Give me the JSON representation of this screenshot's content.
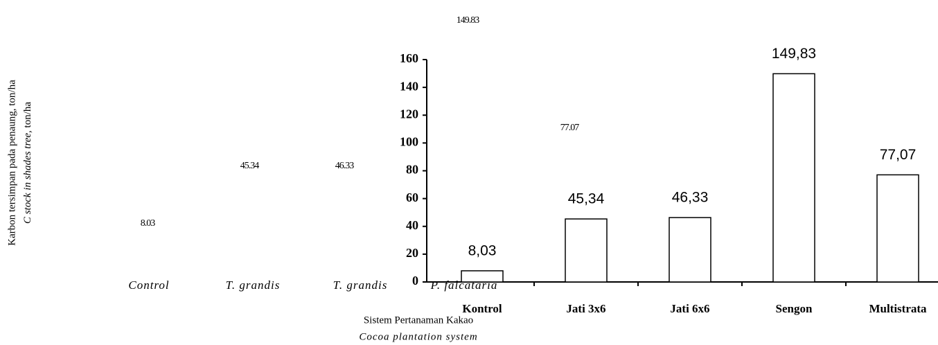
{
  "chart_data": {
    "type": "bar",
    "ylabel": "Karbon tersimpan pada penaung, ton/ha",
    "ylabel_en": "C stock in shades tree,",
    "ylabel_en_unit": "ton/ha",
    "xlabel": "Sistem Pertanaman Kakao",
    "xlabel_en": "Cocoa plantation system",
    "categories": [
      "Kontrol",
      "Jati 3x6",
      "Jati 6x6",
      "Sengon",
      "Multistrata"
    ],
    "categories_en": [
      "Control",
      "T. grandis",
      "T. grandis",
      "P. falcataria"
    ],
    "values": [
      8.03,
      45.34,
      46.33,
      149.83,
      77.07
    ],
    "value_labels": [
      "8,03",
      "45,34",
      "46,33",
      "149,83",
      "77,07"
    ],
    "overlay_labels": [
      "8.03",
      "45.34",
      "46.33",
      "149.83",
      "77.07"
    ],
    "color": "#ffffff",
    "ylim": [
      0,
      160
    ],
    "yticks": [
      0,
      20,
      40,
      60,
      80,
      100,
      120,
      140,
      160
    ]
  }
}
